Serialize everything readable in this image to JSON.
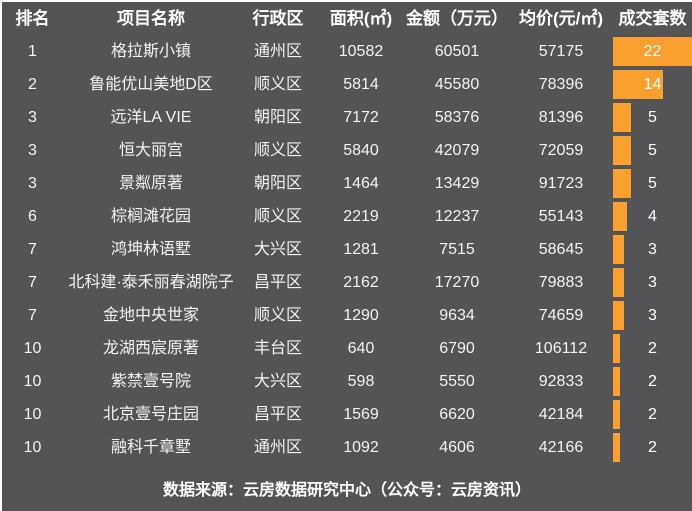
{
  "theme": {
    "panel_background": "#545456",
    "accent_orange": "#F9A02F",
    "text_color": "#F2F2F2",
    "header_text_color": "#FFFFFF",
    "page_border_color": "#FFFFFF"
  },
  "table": {
    "columns": [
      "排名",
      "项目名称",
      "行政区",
      "面积(㎡)",
      "金额（万元）",
      "均价(元/㎡)",
      "成交套数"
    ],
    "bar_max": 22,
    "rows": [
      {
        "rank": "1",
        "name": "格拉斯小镇",
        "district": "通州区",
        "area": "10582",
        "amount": "60501",
        "price": "57175",
        "count": 22
      },
      {
        "rank": "2",
        "name": "鲁能优山美地D区",
        "district": "顺义区",
        "area": "5814",
        "amount": "45580",
        "price": "78396",
        "count": 14
      },
      {
        "rank": "3",
        "name": "远洋LA VIE",
        "district": "朝阳区",
        "area": "7172",
        "amount": "58376",
        "price": "81396",
        "count": 5
      },
      {
        "rank": "3",
        "name": "恒大丽宫",
        "district": "顺义区",
        "area": "5840",
        "amount": "42079",
        "price": "72059",
        "count": 5
      },
      {
        "rank": "3",
        "name": "景粼原著",
        "district": "朝阳区",
        "area": "1464",
        "amount": "13429",
        "price": "91723",
        "count": 5
      },
      {
        "rank": "6",
        "name": "棕榈滩花园",
        "district": "顺义区",
        "area": "2219",
        "amount": "12237",
        "price": "55143",
        "count": 4
      },
      {
        "rank": "7",
        "name": "鸿坤林语墅",
        "district": "大兴区",
        "area": "1281",
        "amount": "7515",
        "price": "58645",
        "count": 3
      },
      {
        "rank": "7",
        "name": "北科建·泰禾丽春湖院子",
        "district": "昌平区",
        "area": "2162",
        "amount": "17270",
        "price": "79883",
        "count": 3
      },
      {
        "rank": "7",
        "name": "金地中央世家",
        "district": "顺义区",
        "area": "1290",
        "amount": "9634",
        "price": "74659",
        "count": 3
      },
      {
        "rank": "10",
        "name": "龙湖西宸原著",
        "district": "丰台区",
        "area": "640",
        "amount": "6790",
        "price": "106112",
        "count": 2
      },
      {
        "rank": "10",
        "name": "紫禁壹号院",
        "district": "大兴区",
        "area": "598",
        "amount": "5550",
        "price": "92833",
        "count": 2
      },
      {
        "rank": "10",
        "name": "北京壹号庄园",
        "district": "昌平区",
        "area": "1569",
        "amount": "6620",
        "price": "42184",
        "count": 2
      },
      {
        "rank": "10",
        "name": "融科千章墅",
        "district": "通州区",
        "area": "1092",
        "amount": "4606",
        "price": "42166",
        "count": 2
      }
    ]
  },
  "footer": {
    "text": "数据来源：云房数据研究中心（公众号：云房资讯）"
  },
  "chart_data": {
    "type": "table",
    "title": "",
    "columns": [
      "排名",
      "项目名称",
      "行政区",
      "面积(㎡)",
      "金额（万元）",
      "均价(元/㎡)",
      "成交套数"
    ],
    "rows": [
      [
        "1",
        "格拉斯小镇",
        "通州区",
        10582,
        60501,
        57175,
        22
      ],
      [
        "2",
        "鲁能优山美地D区",
        "顺义区",
        5814,
        45580,
        78396,
        14
      ],
      [
        "3",
        "远洋LA VIE",
        "朝阳区",
        7172,
        58376,
        81396,
        5
      ],
      [
        "3",
        "恒大丽宫",
        "顺义区",
        5840,
        42079,
        72059,
        5
      ],
      [
        "3",
        "景粼原著",
        "朝阳区",
        1464,
        13429,
        91723,
        5
      ],
      [
        "6",
        "棕榈滩花园",
        "顺义区",
        2219,
        12237,
        55143,
        4
      ],
      [
        "7",
        "鸿坤林语墅",
        "大兴区",
        1281,
        7515,
        58645,
        3
      ],
      [
        "7",
        "北科建·泰禾丽春湖院子",
        "昌平区",
        2162,
        17270,
        79883,
        3
      ],
      [
        "7",
        "金地中央世家",
        "顺义区",
        1290,
        9634,
        74659,
        3
      ],
      [
        "10",
        "龙湖西宸原著",
        "丰台区",
        640,
        6790,
        106112,
        2
      ],
      [
        "10",
        "紫禁壹号院",
        "大兴区",
        598,
        5550,
        92833,
        2
      ],
      [
        "10",
        "北京壹号庄园",
        "昌平区",
        1569,
        6620,
        42184,
        2
      ],
      [
        "10",
        "融科千章墅",
        "通州区",
        1092,
        4606,
        42166,
        2
      ]
    ],
    "bar_column": "成交套数",
    "bar_values": [
      22,
      14,
      5,
      5,
      5,
      4,
      3,
      3,
      3,
      2,
      2,
      2,
      2
    ],
    "bar_axis_range": [
      0,
      22
    ],
    "bar_color": "#F9A02F",
    "annotations": [
      "数据来源：云房数据研究中心（公众号：云房资讯）"
    ]
  }
}
